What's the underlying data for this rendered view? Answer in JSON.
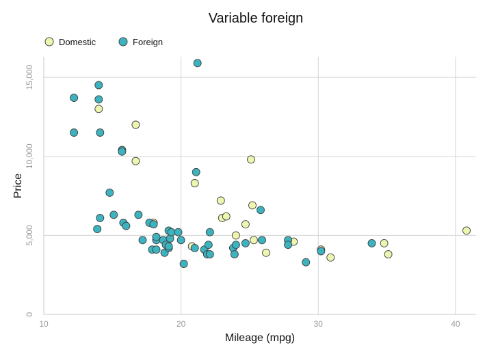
{
  "chart_data": {
    "type": "scatter",
    "title": "Variable foreign",
    "xlabel": "Mileage (mpg)",
    "ylabel": "Price",
    "xlim": [
      10,
      41.5
    ],
    "ylim": [
      0,
      16300
    ],
    "xticks": [
      10,
      20,
      30,
      40
    ],
    "yticks": [
      0,
      5000,
      10000,
      15000
    ],
    "x_tick_labels": [
      "10",
      "20",
      "30",
      "40"
    ],
    "y_tick_labels": [
      "0",
      "5,000",
      "10,000",
      "15,000"
    ],
    "grid": true,
    "legend_position": "top-left",
    "series": [
      {
        "name": "Domestic",
        "color": "#eef5b0",
        "x": [
          14,
          16.7,
          16.7,
          18,
          20.8,
          21,
          22.9,
          23,
          23.3,
          24,
          24.7,
          25.1,
          25.2,
          25.3,
          26.2,
          28.2,
          30.2,
          30.9,
          34.8,
          35.1,
          40.8
        ],
        "y": [
          13000,
          12000,
          9700,
          5800,
          4300,
          8300,
          7200,
          6100,
          6200,
          5000,
          5700,
          9800,
          6900,
          4700,
          3900,
          4600,
          4100,
          3600,
          4500,
          3800,
          5300
        ]
      },
      {
        "name": "Foreign",
        "color": "#3cb3bf",
        "x": [
          12.2,
          12.2,
          13.9,
          14,
          14,
          14.1,
          14.1,
          14.8,
          15.1,
          15.7,
          15.7,
          15.8,
          16,
          16.9,
          17.2,
          17.7,
          17.9,
          18,
          18.2,
          18.2,
          18.2,
          18.7,
          18.8,
          18.9,
          19.1,
          19.1,
          19.1,
          19.2,
          19.3,
          19.8,
          20,
          20.2,
          21,
          21.1,
          21.2,
          21.7,
          21.9,
          22,
          22.1,
          22.1,
          23.8,
          23.9,
          24,
          24.7,
          25.8,
          25.9,
          27.8,
          27.8,
          29.1,
          30.2,
          33.9
        ],
        "y": [
          13700,
          11500,
          5400,
          14500,
          13600,
          6100,
          11500,
          7700,
          6300,
          10400,
          10300,
          5800,
          5600,
          6300,
          4700,
          5800,
          4100,
          5700,
          4700,
          4900,
          4100,
          4700,
          3900,
          4400,
          5300,
          4200,
          4300,
          4800,
          5200,
          5200,
          4700,
          3200,
          4200,
          9000,
          15900,
          4100,
          3800,
          4400,
          3800,
          5200,
          4200,
          3800,
          4400,
          4500,
          6600,
          4700,
          4700,
          4400,
          3300,
          4000,
          4500
        ]
      }
    ]
  }
}
